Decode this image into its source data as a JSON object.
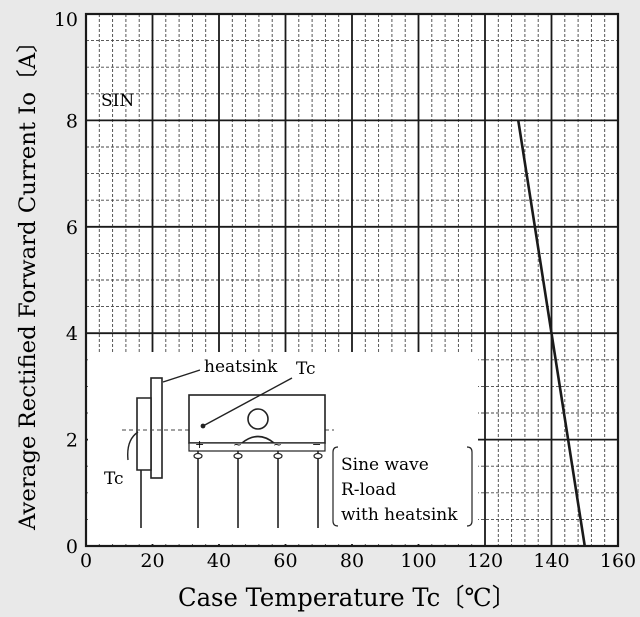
{
  "chart_data": {
    "type": "line",
    "xlabel": "Case Temperature  Tc〔℃〕",
    "ylabel": "Average Rectified Forward Current  Io〔A〕",
    "xlim": [
      0,
      160
    ],
    "ylim": [
      0,
      10
    ],
    "x_ticks": [
      0,
      20,
      40,
      60,
      80,
      100,
      120,
      140,
      160
    ],
    "y_ticks": [
      0,
      2,
      4,
      6,
      8,
      10
    ],
    "x_tick_labels": [
      "0",
      "20",
      "40",
      "60",
      "80",
      "100",
      "120",
      "140",
      "160"
    ],
    "y_tick_labels": [
      "0",
      "2",
      "4",
      "6",
      "8",
      "10"
    ],
    "grid": true,
    "series": [
      {
        "name": "SIN",
        "x": [
          130,
          150
        ],
        "y": [
          8,
          0
        ]
      }
    ],
    "annotations": {
      "series_label": "SIN",
      "inset_heatsink": "heatsink",
      "inset_tc_top": "Tc",
      "inset_tc_side": "Tc",
      "pin_marks": [
        "+",
        "~",
        "~",
        "−"
      ],
      "conditions": [
        "Sine wave",
        "R-load",
        "with heatsink"
      ]
    }
  }
}
